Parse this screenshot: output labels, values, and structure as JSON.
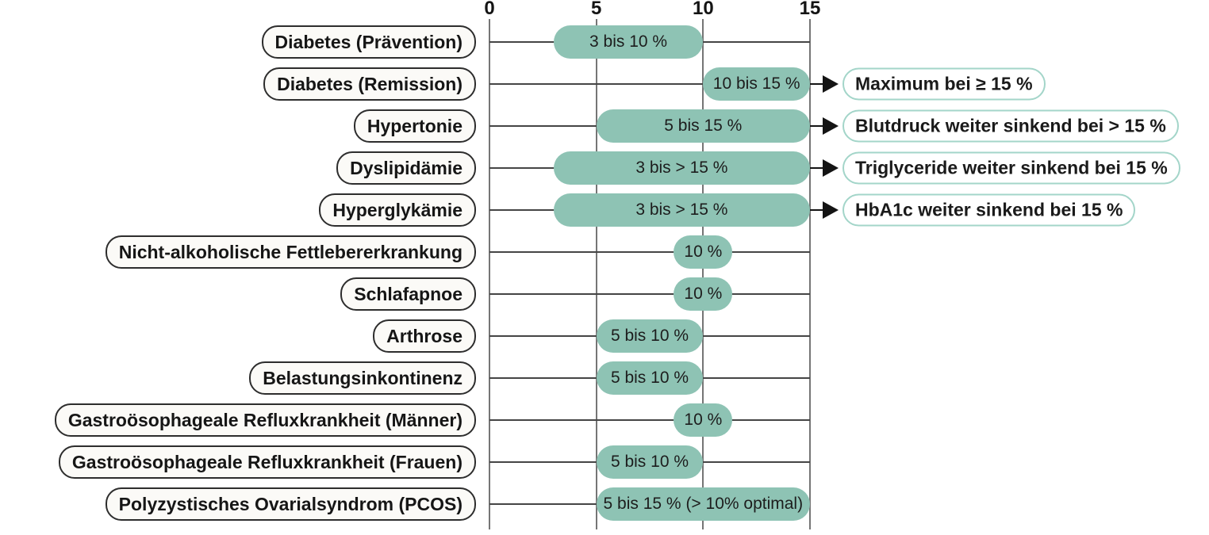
{
  "chart_data": {
    "type": "bar",
    "subtype": "horizontal-range-bars",
    "title": "",
    "xlabel": "",
    "ylabel": "",
    "axis": {
      "position": "top",
      "ticks": [
        0,
        5,
        10,
        15
      ],
      "min": 0,
      "max": 15,
      "unit": "%",
      "grid": true
    },
    "rows": [
      {
        "label": "Diabetes (Prävention)",
        "bar": {
          "text": "3 bis 10 %",
          "from": 3,
          "to": 10
        },
        "callout": null
      },
      {
        "label": "Diabetes (Remission)",
        "bar": {
          "text": "10 bis 15 %",
          "from": 10,
          "to": 15
        },
        "callout": "Maximum bei ≥ 15 %"
      },
      {
        "label": "Hypertonie",
        "bar": {
          "text": "5 bis 15 %",
          "from": 5,
          "to": 15
        },
        "callout": "Blutdruck weiter sinkend bei > 15 %"
      },
      {
        "label": "Dyslipidämie",
        "bar": {
          "text": "3 bis > 15 %",
          "from": 3,
          "to": 15
        },
        "callout": "Triglyceride weiter sinkend bei 15 %"
      },
      {
        "label": "Hyperglykämie",
        "bar": {
          "text": "3 bis > 15 %",
          "from": 3,
          "to": 15
        },
        "callout": "HbA1c weiter sinkend bei 15 %"
      },
      {
        "label": "Nicht-alkoholische Fettlebererkrankung",
        "bar": {
          "text": "10 %",
          "at": 10
        },
        "callout": null
      },
      {
        "label": "Schlafapnoe",
        "bar": {
          "text": "10 %",
          "at": 10
        },
        "callout": null
      },
      {
        "label": "Arthrose",
        "bar": {
          "text": "5 bis 10 %",
          "from": 5,
          "to": 10
        },
        "callout": null
      },
      {
        "label": "Belastungsinkontinenz",
        "bar": {
          "text": "5 bis 10 %",
          "from": 5,
          "to": 10
        },
        "callout": null
      },
      {
        "label": "Gastroösophageale Refluxkrankheit (Männer)",
        "bar": {
          "text": "10 %",
          "at": 10
        },
        "callout": null
      },
      {
        "label": "Gastroösophageale Refluxkrankheit (Frauen)",
        "bar": {
          "text": "5 bis 10 %",
          "from": 5,
          "to": 10
        },
        "callout": null
      },
      {
        "label": "Polyzystisches Ovarialsyndrom (PCOS)",
        "bar": {
          "text": "5 bis 15 % (> 10% optimal)",
          "from": 5,
          "to": 15
        },
        "callout": null
      }
    ],
    "colors": {
      "bar_fill": "#8ec3b4",
      "callout_border": "#a3d5c9",
      "label_pill_fill": "#fbfaf7",
      "label_pill_border": "#2d2d2d",
      "grid_line": "#757575",
      "row_line": "#454545",
      "arrow": "#141414",
      "text": "#161616",
      "background": "#ffffff"
    },
    "legend": null
  }
}
